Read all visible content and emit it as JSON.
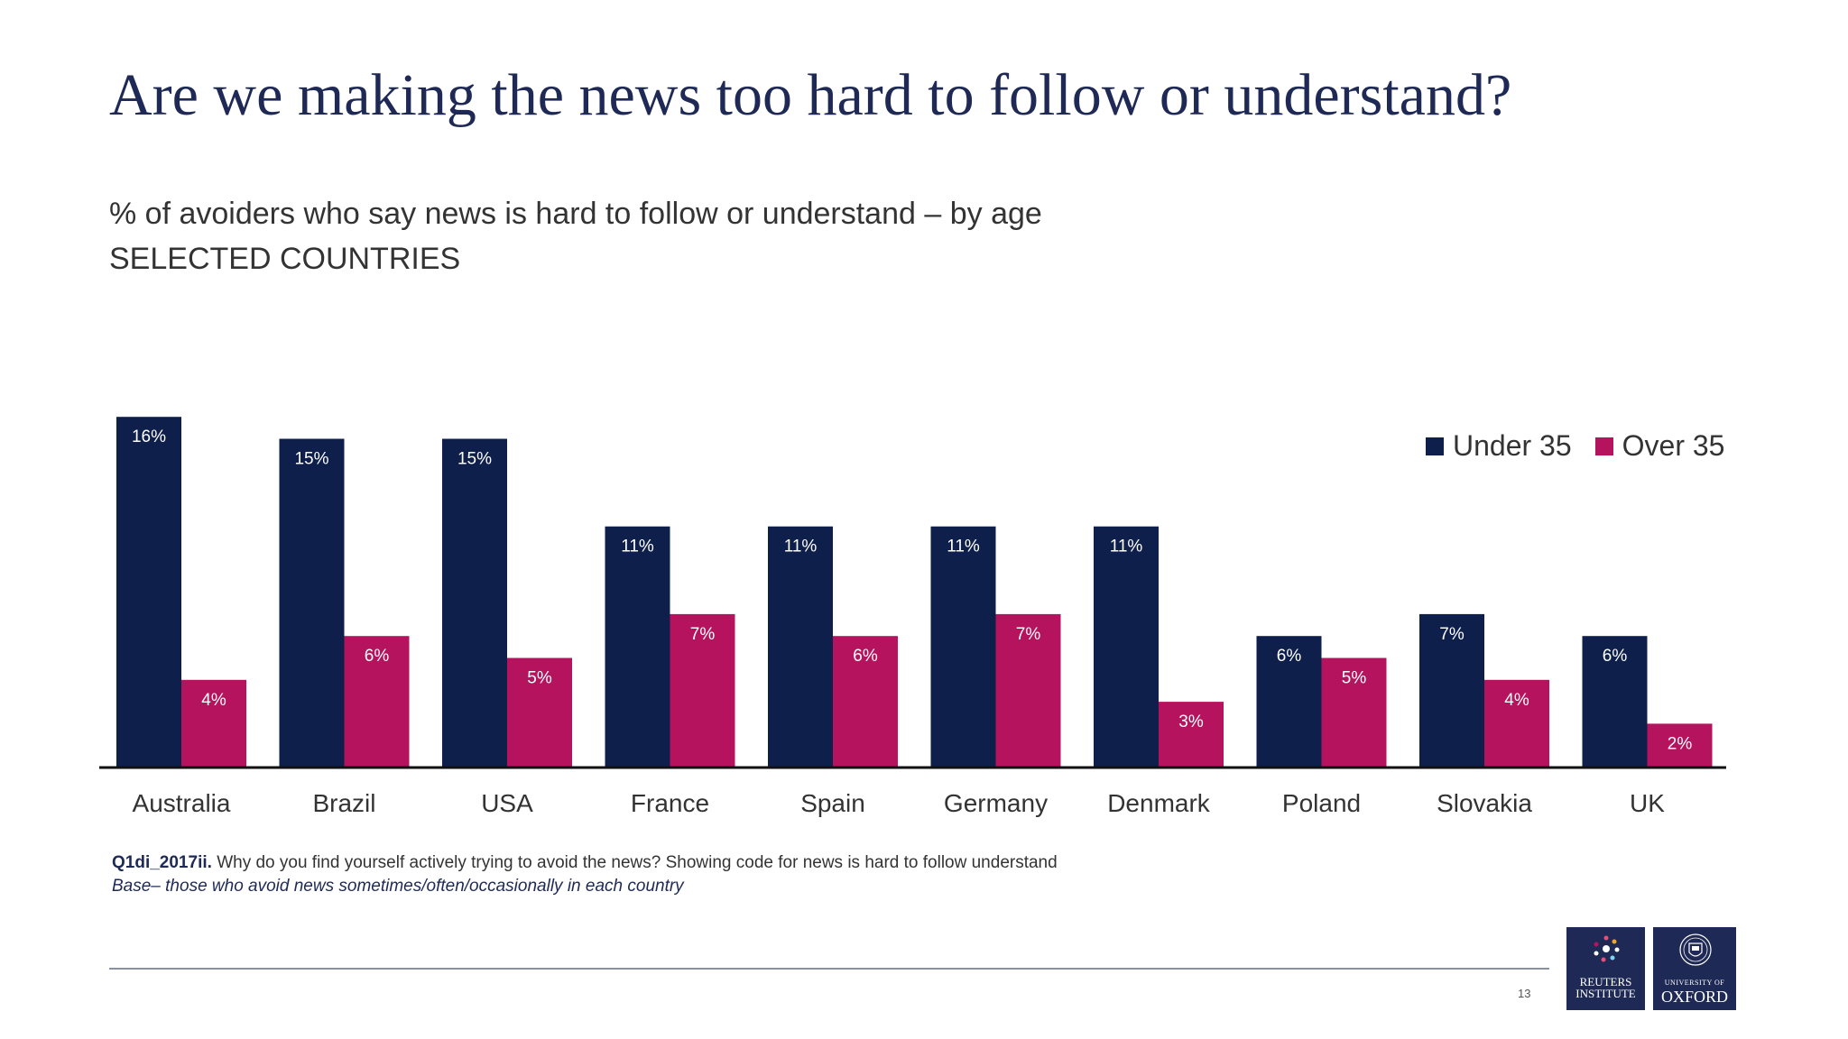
{
  "slide": {
    "title": "Are we making the news too hard to follow or understand?",
    "subtitle": "% of avoiders who say news is hard to follow or understand – by age",
    "subtitle2": "SELECTED COUNTRIES",
    "note_question_code": "Q1di_2017ii.",
    "note_question": "Why do you find yourself actively trying to avoid the news? Showing code for news is hard to follow understand",
    "note_base": "Base– those who avoid news sometimes/often/occasionally in each country",
    "page_number": "13",
    "logo_reuters_line1": "REUTERS",
    "logo_reuters_line2": "INSTITUTE",
    "logo_oxford_line1": "UNIVERSITY OF",
    "logo_oxford_line2": "OXFORD"
  },
  "colors": {
    "under35": "#0e1f4b",
    "over35": "#b5135d",
    "title": "#1e2a55"
  },
  "chart_data": {
    "type": "bar",
    "categories": [
      "Australia",
      "Brazil",
      "USA",
      "France",
      "Spain",
      "Germany",
      "Denmark",
      "Poland",
      "Slovakia",
      "UK"
    ],
    "series": [
      {
        "name": "Under 35",
        "values": [
          16,
          15,
          15,
          11,
          11,
          11,
          11,
          6,
          7,
          6
        ],
        "labels": [
          "16%",
          "15%",
          "15%",
          "11%",
          "11%",
          "11%",
          "11%",
          "6%",
          "7%",
          "6%"
        ]
      },
      {
        "name": "Over 35",
        "values": [
          4,
          6,
          5,
          7,
          6,
          7,
          3,
          5,
          4,
          2
        ],
        "labels": [
          "4%",
          "6%",
          "5%",
          "7%",
          "6%",
          "7%",
          "3%",
          "5%",
          "4%",
          "2%"
        ]
      }
    ],
    "ylim": [
      0,
      16
    ],
    "grid": false,
    "legend_position": "top-right"
  }
}
